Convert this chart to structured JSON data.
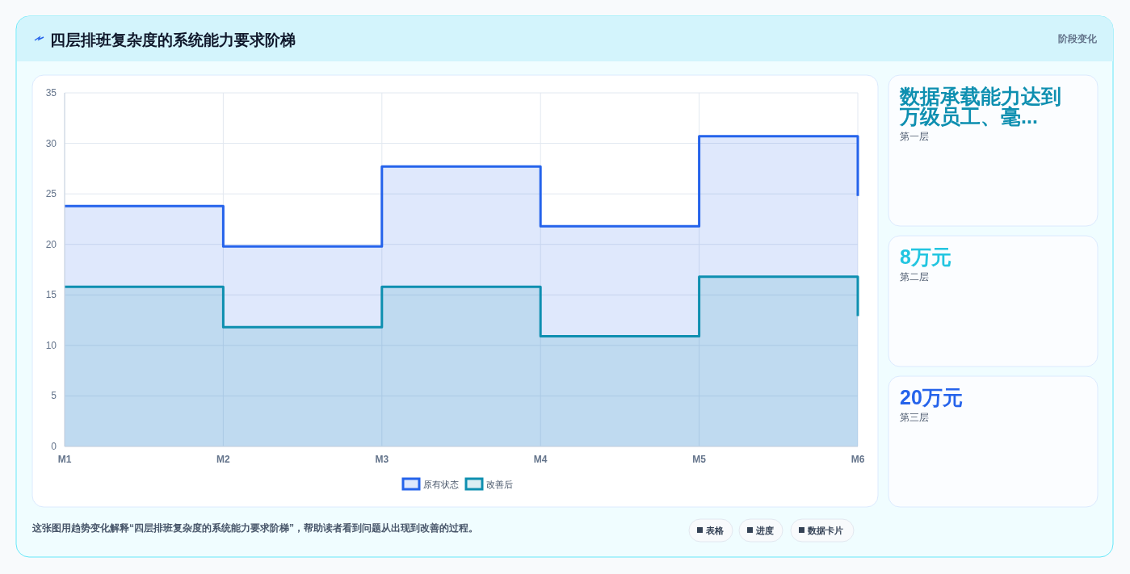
{
  "chart_data": [
    {
      "type": "step",
      "title": "四层排班复杂度的系统能力要求阶梯",
      "categories": [
        "M1",
        "M2",
        "M3",
        "M4",
        "M5",
        "M6"
      ],
      "series": [
        {
          "name": "原有状态",
          "type": "area",
          "color": "#2563eb",
          "values": [
            23.8,
            19.8,
            27.7,
            21.8,
            30.7,
            24.8
          ]
        },
        {
          "name": "改善后",
          "type": "area",
          "color": "#0e8fb0",
          "values": [
            15.8,
            11.8,
            15.8,
            10.9,
            16.8,
            12.9
          ]
        }
      ],
      "ylim": [
        0,
        35
      ],
      "yticks": [
        0,
        5,
        10,
        15,
        20,
        25,
        30,
        35
      ],
      "grid": true,
      "legend": "bottom",
      "marker": "none",
      "annotations": [
        "这张图用趋势变化解释“四层排班复杂度的系统能力要求阶梯”，帮助读者看到问题从出现到改善的过程。",
        "表格",
        "进度",
        "数据卡片"
      ]
    },
    {
      "type": "other",
      "title": "阶段变化",
      "categories": [
        "第一层",
        "第二层",
        "第三层"
      ],
      "annotations": [
        "数据承载能力达到万级员工、毫...",
        "8万元",
        "20万元"
      ]
    }
  ]
}
